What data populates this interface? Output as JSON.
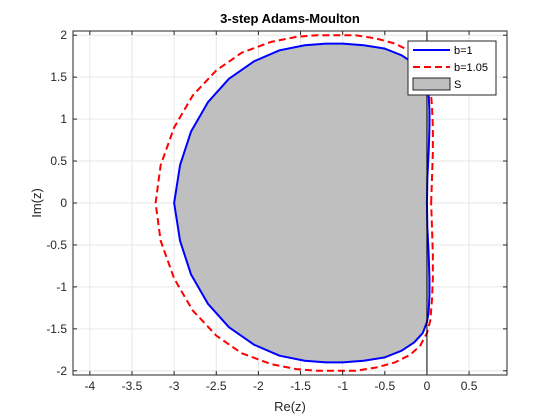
{
  "chart_data": {
    "type": "line",
    "title": "3-step Adams-Moulton",
    "xlabel": "Re(z)",
    "ylabel": "Im(z)",
    "xlim": [
      -4.2,
      0.95
    ],
    "ylim": [
      -2.05,
      2.05
    ],
    "grid": true,
    "legend_position": "top-right",
    "x_ticks": [
      {
        "value": -4,
        "label": "-4"
      },
      {
        "value": -3.5,
        "label": "-3.5"
      },
      {
        "value": -3,
        "label": "-3"
      },
      {
        "value": -2.5,
        "label": "-2.5"
      },
      {
        "value": -2,
        "label": "-2"
      },
      {
        "value": -1.5,
        "label": "-1.5"
      },
      {
        "value": -1,
        "label": "-1"
      },
      {
        "value": -0.5,
        "label": "-0.5"
      },
      {
        "value": 0,
        "label": "0"
      },
      {
        "value": 0.5,
        "label": "0.5"
      }
    ],
    "y_ticks": [
      {
        "value": 2,
        "label": "2"
      },
      {
        "value": 1.5,
        "label": "1.5"
      },
      {
        "value": 1,
        "label": "1"
      },
      {
        "value": 0.5,
        "label": "0.5"
      },
      {
        "value": 0,
        "label": "0"
      },
      {
        "value": -0.5,
        "label": "-0.5"
      },
      {
        "value": -1,
        "label": "-1"
      },
      {
        "value": -1.5,
        "label": "-1.5"
      },
      {
        "value": -2,
        "label": "-2"
      }
    ],
    "reference_lines": [
      {
        "orientation": "vertical",
        "x": 0,
        "color": "#000000"
      }
    ],
    "series": [
      {
        "name": "S",
        "kind": "filled-region",
        "fill": "#bfbfbf",
        "x": [
          0,
          0.005,
          0.02,
          0.03,
          0.03,
          0.02,
          0.0,
          -0.05,
          -0.15,
          -0.3,
          -0.5,
          -0.75,
          -1.0,
          -1.2,
          -1.45,
          -1.75,
          -2.05,
          -2.35,
          -2.6,
          -2.8,
          -2.93,
          -3.0,
          -2.93,
          -2.8,
          -2.6,
          -2.35,
          -2.05,
          -1.75,
          -1.45,
          -1.2,
          -1.0,
          -0.75,
          -0.5,
          -0.3,
          -0.15,
          -0.05,
          0.0,
          0.02,
          0.03,
          0.03,
          0.02,
          0.005,
          0
        ],
        "y": [
          0,
          0.3,
          0.6,
          0.9,
          1.1,
          1.3,
          1.42,
          1.55,
          1.66,
          1.76,
          1.84,
          1.88,
          1.9,
          1.9,
          1.88,
          1.82,
          1.69,
          1.48,
          1.2,
          0.85,
          0.45,
          0.0,
          -0.45,
          -0.85,
          -1.2,
          -1.48,
          -1.69,
          -1.82,
          -1.88,
          -1.9,
          -1.9,
          -1.88,
          -1.84,
          -1.76,
          -1.66,
          -1.55,
          -1.42,
          -1.3,
          -1.1,
          -0.9,
          -0.6,
          -0.3,
          0
        ]
      },
      {
        "name": "b=1",
        "kind": "line",
        "color": "#0000ff",
        "dash": "solid",
        "x": [
          0,
          0.005,
          0.02,
          0.03,
          0.03,
          0.02,
          0.0,
          -0.05,
          -0.15,
          -0.3,
          -0.5,
          -0.75,
          -1.0,
          -1.2,
          -1.45,
          -1.75,
          -2.05,
          -2.35,
          -2.6,
          -2.8,
          -2.93,
          -3.0,
          -2.93,
          -2.8,
          -2.6,
          -2.35,
          -2.05,
          -1.75,
          -1.45,
          -1.2,
          -1.0,
          -0.75,
          -0.5,
          -0.3,
          -0.15,
          -0.05,
          0.0,
          0.02,
          0.03,
          0.03,
          0.02,
          0.005,
          0
        ],
        "y": [
          0,
          0.3,
          0.6,
          0.9,
          1.1,
          1.3,
          1.42,
          1.55,
          1.66,
          1.76,
          1.84,
          1.88,
          1.9,
          1.9,
          1.88,
          1.82,
          1.69,
          1.48,
          1.2,
          0.85,
          0.45,
          0.0,
          -0.45,
          -0.85,
          -1.2,
          -1.48,
          -1.69,
          -1.82,
          -1.88,
          -1.9,
          -1.9,
          -1.88,
          -1.84,
          -1.76,
          -1.66,
          -1.55,
          -1.42,
          -1.3,
          -1.1,
          -0.9,
          -0.6,
          -0.3,
          0
        ]
      },
      {
        "name": "b=1.05",
        "kind": "line",
        "color": "#ff0000",
        "dash": "dashed",
        "x": [
          0.05,
          0.06,
          0.07,
          0.07,
          0.06,
          0.04,
          0.0,
          -0.08,
          -0.2,
          -0.38,
          -0.6,
          -0.85,
          -1.1,
          -1.3,
          -1.55,
          -1.85,
          -2.2,
          -2.5,
          -2.78,
          -3.0,
          -3.16,
          -3.22,
          -3.16,
          -3.0,
          -2.78,
          -2.5,
          -2.2,
          -1.85,
          -1.55,
          -1.3,
          -1.1,
          -0.85,
          -0.6,
          -0.38,
          -0.2,
          -0.08,
          0.0,
          0.04,
          0.06,
          0.07,
          0.07,
          0.06,
          0.05
        ],
        "y": [
          0,
          0.3,
          0.6,
          0.9,
          1.15,
          1.4,
          1.55,
          1.7,
          1.81,
          1.9,
          1.96,
          2.0,
          2.0,
          2.0,
          1.98,
          1.92,
          1.79,
          1.58,
          1.28,
          0.9,
          0.45,
          0.0,
          -0.45,
          -0.9,
          -1.28,
          -1.58,
          -1.79,
          -1.92,
          -1.98,
          -2.0,
          -2.0,
          -2.0,
          -1.96,
          -1.9,
          -1.81,
          -1.7,
          -1.55,
          -1.4,
          -1.15,
          -0.9,
          -0.6,
          -0.3,
          0
        ]
      }
    ],
    "legend": [
      {
        "label": "b=1",
        "symbol": "line",
        "color": "#0000ff",
        "dash": "solid"
      },
      {
        "label": "b=1.05",
        "symbol": "line",
        "color": "#ff0000",
        "dash": "dashed"
      },
      {
        "label": "S",
        "symbol": "patch",
        "color": "#bfbfbf"
      }
    ]
  }
}
